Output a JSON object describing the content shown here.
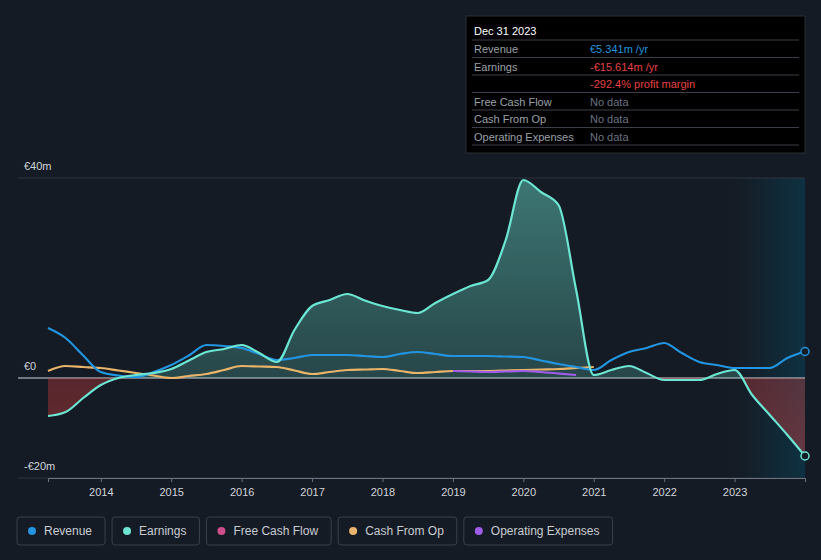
{
  "chart_data": {
    "type": "line",
    "x": [
      2013.25,
      2013.5,
      2013.75,
      2014,
      2014.25,
      2014.5,
      2014.75,
      2015,
      2015.25,
      2015.5,
      2015.75,
      2016,
      2016.25,
      2016.5,
      2016.75,
      2017,
      2017.25,
      2017.5,
      2017.75,
      2018,
      2018.25,
      2018.5,
      2018.75,
      2019,
      2019.25,
      2019.5,
      2019.75,
      2020,
      2020.25,
      2020.5,
      2020.75,
      2021,
      2021.25,
      2021.5,
      2021.75,
      2022,
      2022.25,
      2022.5,
      2022.75,
      2023,
      2023.25,
      2023.5,
      2023.75,
      2024
    ],
    "xlim": [
      2013.25,
      2024
    ],
    "xticks": [
      2014,
      2015,
      2016,
      2017,
      2018,
      2019,
      2020,
      2021,
      2022,
      2023
    ],
    "ylim": [
      -20,
      40
    ],
    "yticks": [
      {
        "value": -20,
        "label": "-€20m"
      },
      {
        "value": 0,
        "label": "€0"
      },
      {
        "value": 40,
        "label": "€40m"
      }
    ],
    "grid": true,
    "legend": "bottom",
    "series": [
      {
        "name": "Revenue",
        "color": "#2394df",
        "values": [
          10,
          8,
          4.5,
          1.2,
          0.5,
          0.2,
          1.2,
          2.6,
          4.5,
          6.6,
          6.4,
          6,
          4.8,
          3.6,
          4,
          4.6,
          4.6,
          4.6,
          4.4,
          4.2,
          4.8,
          5.2,
          4.8,
          4.4,
          4.4,
          4.4,
          4.3,
          4.2,
          3.5,
          2.8,
          2.2,
          1.6,
          3.6,
          5.2,
          6,
          7,
          5,
          3.2,
          2.6,
          2,
          2,
          2,
          4,
          5.3
        ]
      },
      {
        "name": "Earnings",
        "color": "#6ce5d3",
        "values": [
          -7.6,
          -6.8,
          -4,
          -1.4,
          0,
          0.6,
          1,
          1.8,
          3.5,
          5.2,
          5.8,
          6.6,
          5,
          3.2,
          9.6,
          14.4,
          15.6,
          16.8,
          15.5,
          14.4,
          13.6,
          13,
          15,
          16.8,
          18.4,
          19.6,
          27.6,
          39.6,
          37.2,
          34.6,
          17.6,
          0.6,
          1.6,
          2.4,
          1,
          -0.4,
          -0.4,
          -0.4,
          0.8,
          1.6,
          -3.4,
          -7.4,
          -11.4,
          -15.6
        ]
      },
      {
        "name": "Free Cash Flow",
        "color": "#cc4f8c",
        "values": [
          null,
          null,
          null,
          null,
          null,
          null,
          null,
          null,
          null,
          null,
          null,
          null,
          null,
          null,
          null,
          null,
          null,
          null,
          null,
          null,
          null,
          null,
          null,
          null,
          null,
          null,
          null,
          null,
          null,
          null,
          null,
          null,
          null,
          null,
          null,
          null,
          null,
          null,
          null,
          null,
          null,
          null,
          null,
          null
        ]
      },
      {
        "name": "Cash From Op",
        "color": "#e8b36a",
        "values": [
          1.4,
          2.4,
          2.2,
          2,
          1.5,
          1,
          0.5,
          0,
          0.4,
          0.8,
          1.6,
          2.4,
          2.3,
          2.2,
          1.5,
          0.8,
          1.2,
          1.6,
          1.7,
          1.8,
          1.4,
          1,
          1.2,
          1.4,
          1.4,
          1.4,
          1.5,
          1.6,
          1.7,
          1.8,
          2,
          2.2,
          null,
          null,
          null,
          null,
          null,
          null,
          null,
          null,
          null,
          null,
          null,
          null
        ]
      },
      {
        "name": "Operating Expenses",
        "color": "#9f5ce8",
        "values": [
          null,
          null,
          null,
          null,
          null,
          null,
          null,
          null,
          null,
          null,
          null,
          null,
          null,
          null,
          null,
          null,
          null,
          null,
          null,
          null,
          null,
          null,
          null,
          1.4,
          1.3,
          1.2,
          1.3,
          1.4,
          1.2,
          0.9,
          0.6,
          null,
          null,
          null,
          null,
          null,
          null,
          null,
          null,
          null,
          null,
          null,
          null,
          null
        ]
      }
    ],
    "tooltip": {
      "title": "Dec 31 2023",
      "rows": [
        {
          "label": "Revenue",
          "value": "€5.341m /yr",
          "color": "#2394df"
        },
        {
          "label": "Earnings",
          "value": "-€15.614m /yr",
          "color": "#e64141",
          "note": "-292.4% profit margin"
        },
        {
          "label": "Free Cash Flow",
          "value": "No data",
          "color": "#6b7280"
        },
        {
          "label": "Cash From Op",
          "value": "No data",
          "color": "#6b7280"
        },
        {
          "label": "Operating Expenses",
          "value": "No data",
          "color": "#6b7280"
        }
      ]
    }
  }
}
